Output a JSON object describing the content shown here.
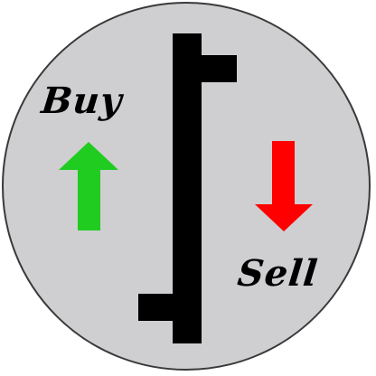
{
  "labels": {
    "buy": "Buy",
    "sell": "Sell"
  },
  "colors": {
    "background_disc": "#cfced0",
    "disc_border": "#3a3a3a",
    "buy_arrow": "#1fcc1f",
    "sell_arrow": "#ff0000",
    "price_bar": "#000000"
  },
  "icons": {
    "buy": "arrow-up-icon",
    "sell": "arrow-down-icon",
    "center": "ohlc-price-bar-icon"
  }
}
